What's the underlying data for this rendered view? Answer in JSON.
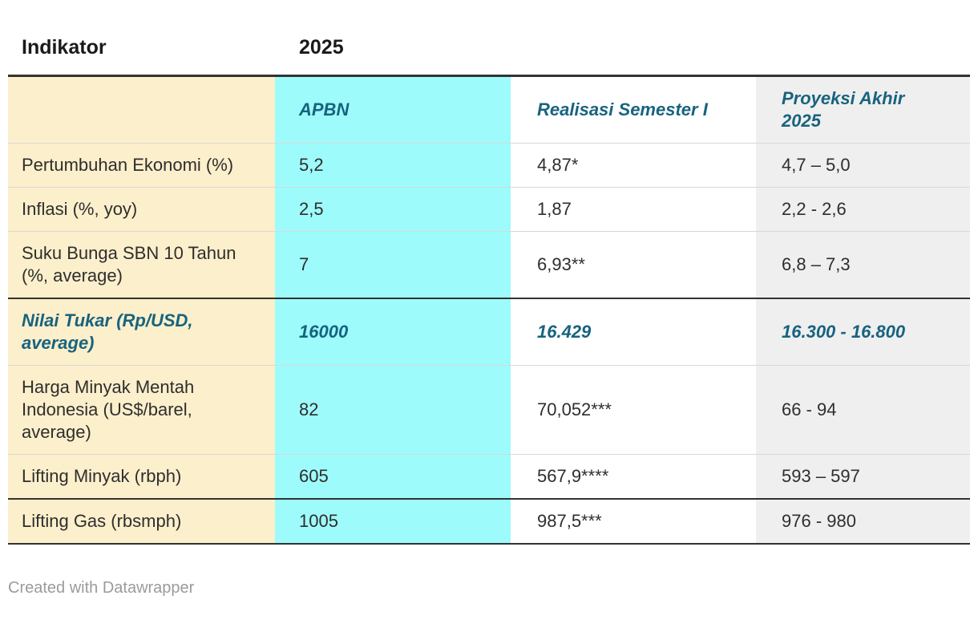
{
  "chart_data": {
    "type": "table",
    "group_header": {
      "left": "Indikator",
      "right": "2025"
    },
    "columns": [
      "APBN",
      "Realisasi Semester I",
      "Proyeksi Akhir 2025"
    ],
    "rows": [
      {
        "indicator": "Pertumbuhan Ekonomi (%)",
        "values": [
          "5,2",
          "4,87*",
          "4,7 – 5,0"
        ],
        "highlight": false,
        "thick_border_top": false
      },
      {
        "indicator": "Inflasi (%, yoy)",
        "values": [
          "2,5",
          "1,87",
          "2,2 - 2,6"
        ],
        "highlight": false,
        "thick_border_top": false
      },
      {
        "indicator": "Suku Bunga SBN 10 Tahun (%, average)",
        "values": [
          "7",
          "6,93**",
          "6,8 – 7,3"
        ],
        "highlight": false,
        "thick_border_top": false
      },
      {
        "indicator": "Nilai Tukar (Rp/USD, average)",
        "values": [
          "16000",
          "16.429",
          "16.300 - 16.800"
        ],
        "highlight": true,
        "thick_border_top": true
      },
      {
        "indicator": "Harga Minyak Mentah Indonesia (US$/barel, average)",
        "values": [
          "82",
          "70,052***",
          "66 - 94"
        ],
        "highlight": false,
        "thick_border_top": false
      },
      {
        "indicator": "Lifting Minyak (rbph)",
        "values": [
          "605",
          "567,9****",
          "593 – 597"
        ],
        "highlight": false,
        "thick_border_top": false
      },
      {
        "indicator": "Lifting Gas (rbsmph)",
        "values": [
          "1005",
          "987,5***",
          "976 - 980"
        ],
        "highlight": false,
        "thick_border_top": true
      }
    ]
  },
  "footer": {
    "credit_text": "Created with Datawrapper"
  },
  "colors": {
    "indicator_column_bg": "#fcefcb",
    "apbn_column_bg": "#9efbfb",
    "realisasi_column_bg": "#ffffff",
    "proyeksi_column_bg": "#efefef",
    "accent_text": "#17637f",
    "body_text": "#2e2e2e",
    "rule_dark": "#333333",
    "rule_light": "#d8d8d8"
  }
}
